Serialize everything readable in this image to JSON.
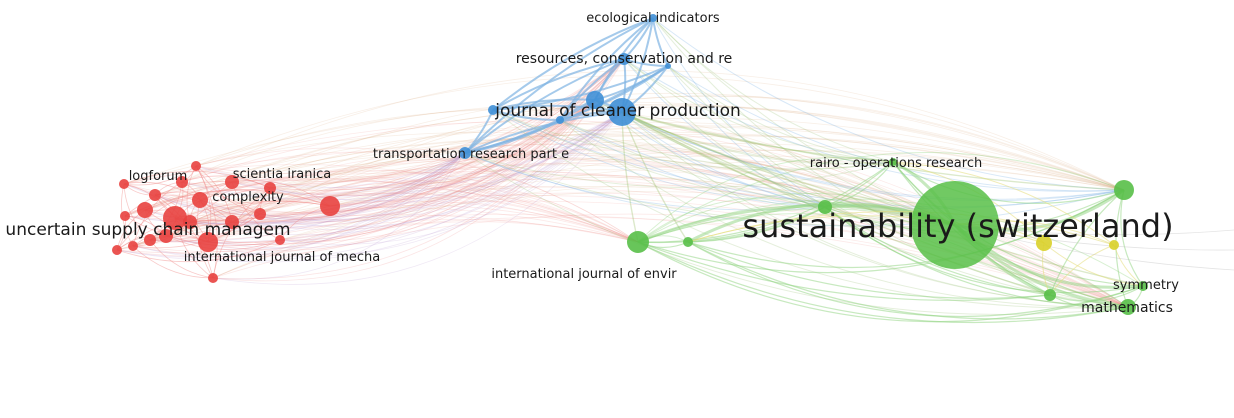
{
  "colors": {
    "red": "#e8413f",
    "blue": "#3f8fd6",
    "green": "#58bf48",
    "yellow": "#d9d02a",
    "edge_red": "#ef8a87",
    "edge_blue": "#7fb3e3",
    "edge_green": "#8fd47f",
    "edge_yellow": "#e4dc7a",
    "edge_mixed": "#b99ad0"
  },
  "labels": {
    "ecological": "ecological indicators",
    "resources": "resources, conservation and re",
    "cleaner": "journal of cleaner production",
    "transportation": "transportation research part e",
    "rairo": "rairo - operations research",
    "sustainability": "sustainability (switzerland)",
    "logforum": "logforum",
    "scientia": "scientia iranica",
    "complexity": "complexity",
    "uncertain": "uncertain supply chain managem",
    "mecha": "international journal of mecha",
    "envir": "international journal of envir",
    "symmetry": "symmetry",
    "mathematics": "mathematics"
  }
}
